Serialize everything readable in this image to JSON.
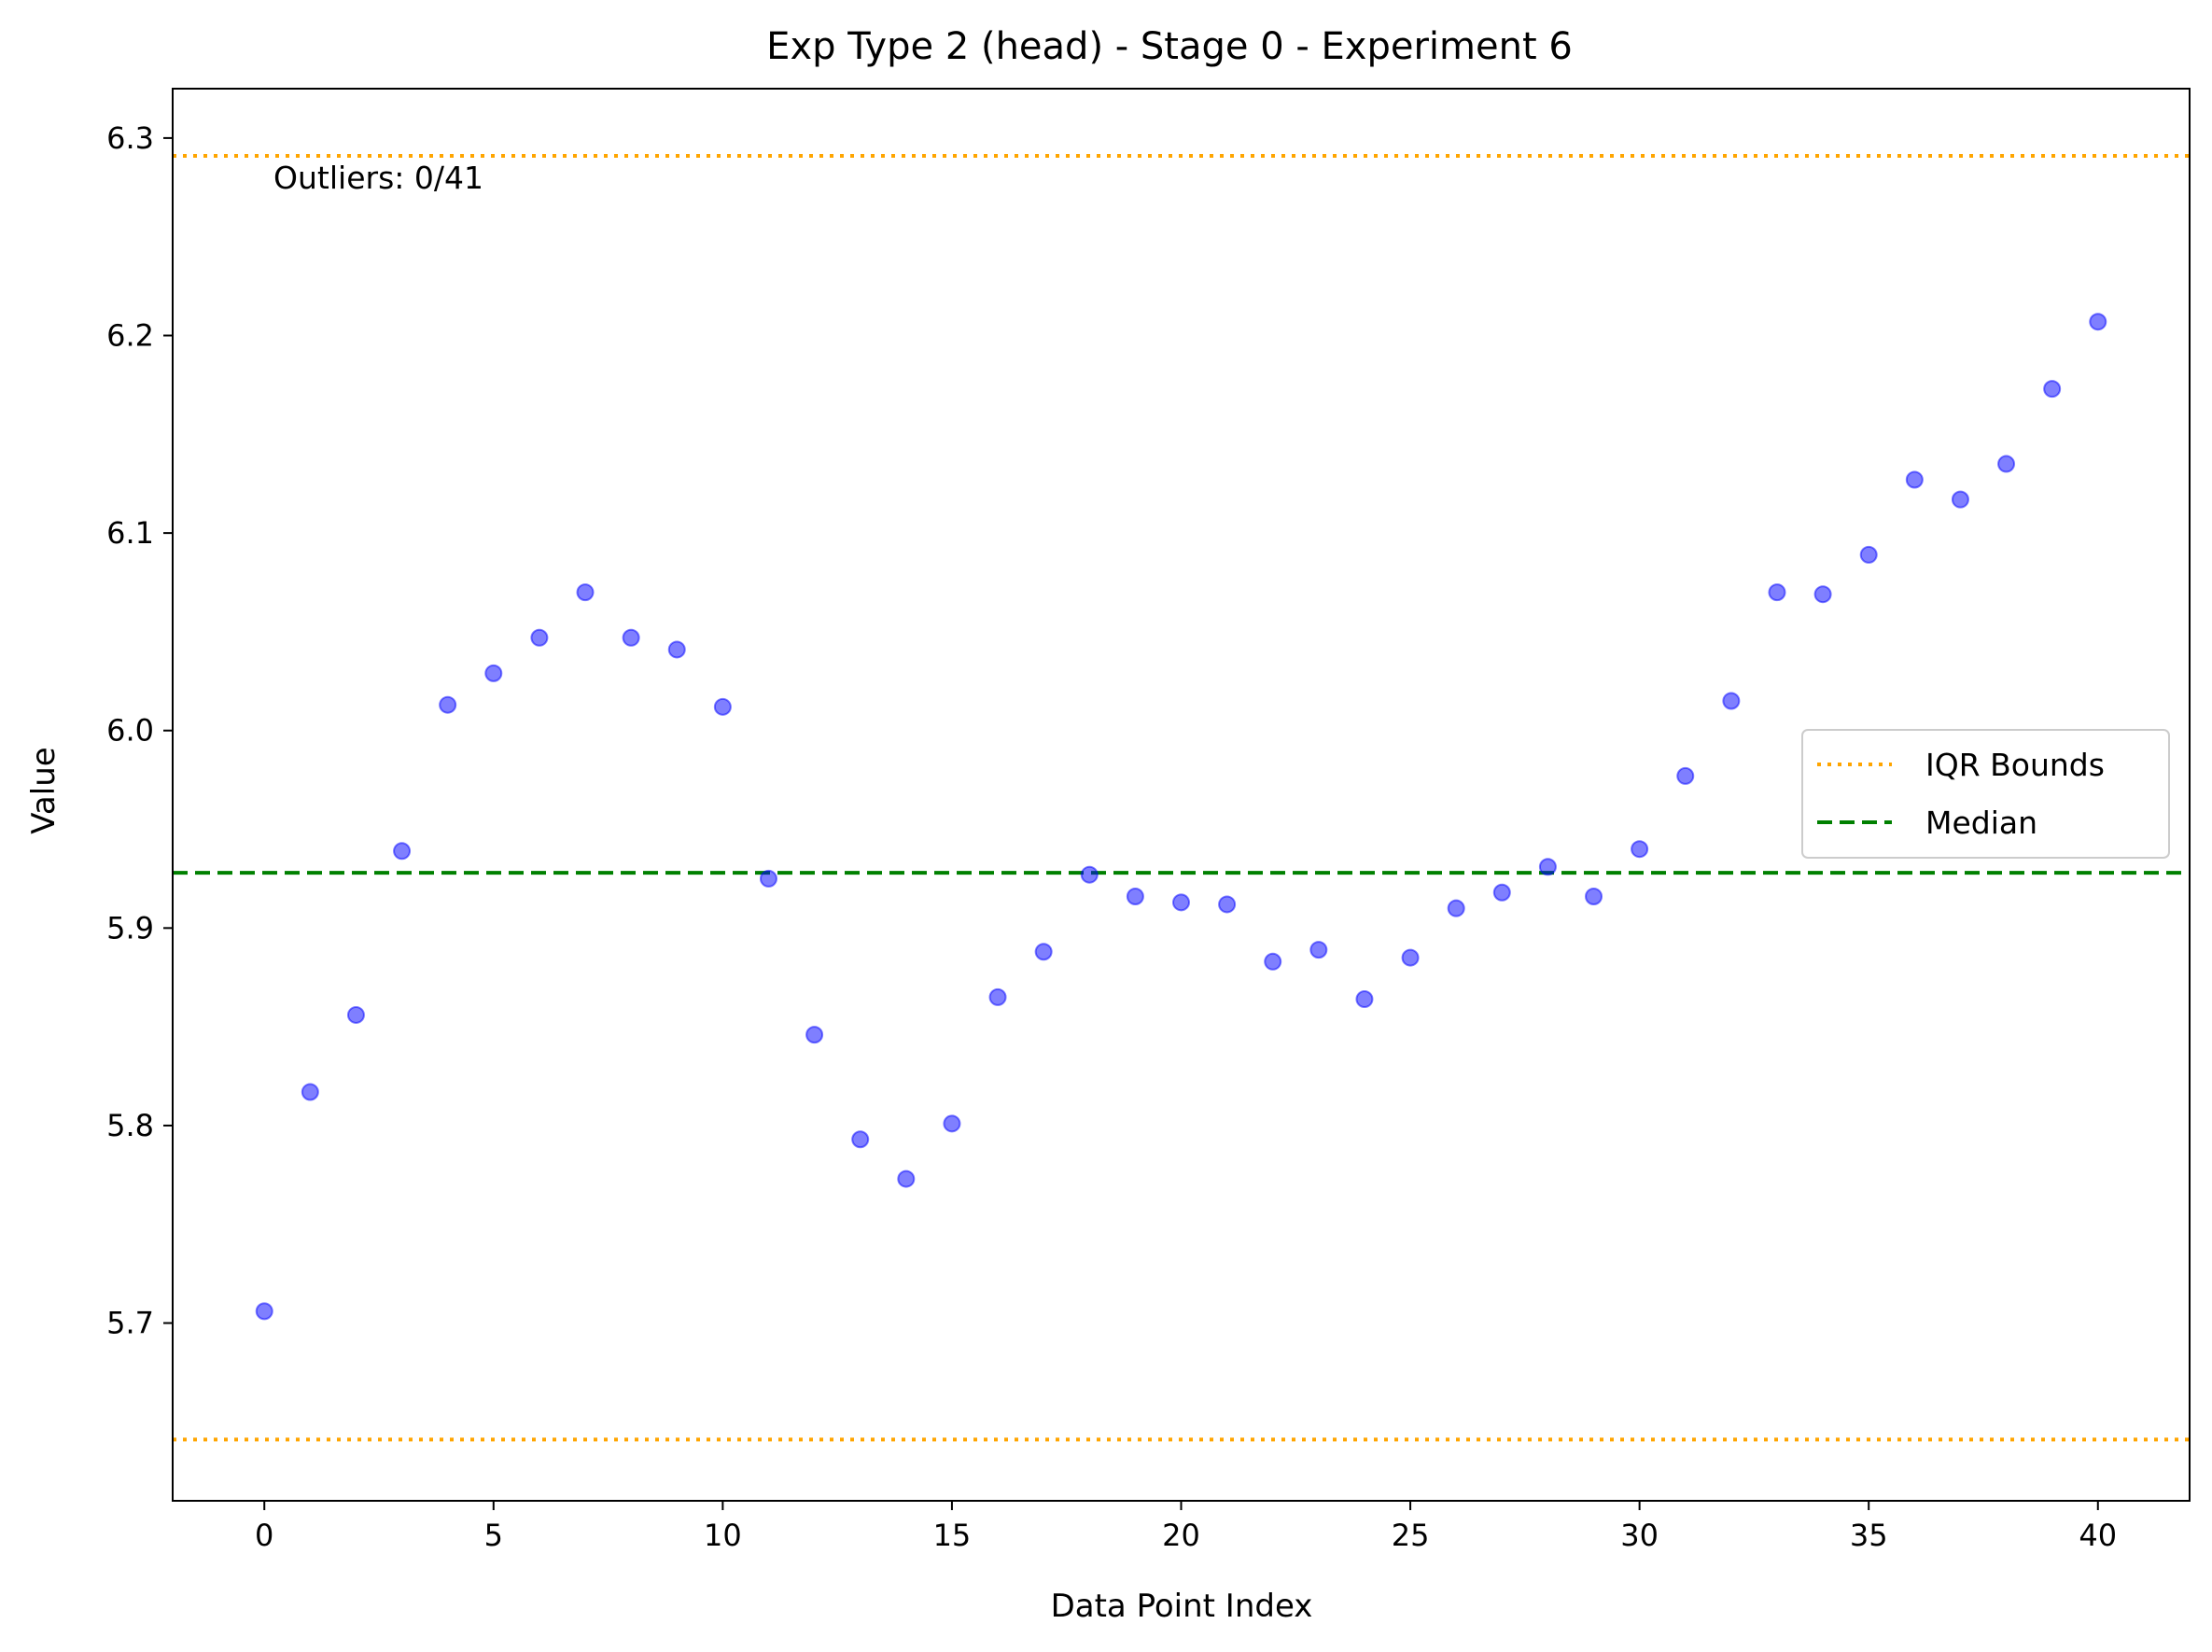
{
  "chart_data": {
    "type": "scatter",
    "title": "Exp Type 2 (head) - Stage 0 - Experiment 6",
    "xlabel": "Data Point Index",
    "ylabel": "Value",
    "xlim": [
      -2,
      42
    ],
    "ylim": [
      5.61,
      6.325
    ],
    "xticks": [
      0,
      5,
      10,
      15,
      20,
      25,
      30,
      35,
      40
    ],
    "yticks": [
      5.7,
      5.8,
      5.9,
      6.0,
      6.1,
      6.2,
      6.3
    ],
    "grid": false,
    "legend_position": "center-right",
    "series": [
      {
        "x": [
          0,
          1,
          2,
          3,
          4,
          5,
          6,
          7,
          8,
          9,
          10,
          11,
          12,
          13,
          14,
          15,
          16,
          17,
          18,
          19,
          20,
          21,
          22,
          23,
          24,
          25,
          26,
          27,
          28,
          29,
          30,
          31,
          32,
          33,
          34,
          35,
          36,
          37,
          38,
          39,
          40
        ],
        "y": [
          5.706,
          5.817,
          5.856,
          5.939,
          6.013,
          6.029,
          6.047,
          6.07,
          6.047,
          6.041,
          6.012,
          5.925,
          5.846,
          5.793,
          5.773,
          5.801,
          5.865,
          5.888,
          5.927,
          5.916,
          5.913,
          5.912,
          5.883,
          5.889,
          5.864,
          5.885,
          5.91,
          5.918,
          5.931,
          5.916,
          5.94,
          5.977,
          6.015,
          6.07,
          6.069,
          6.089,
          6.127,
          6.117,
          6.135,
          6.173,
          6.207
        ],
        "color": "#0000ff"
      }
    ],
    "reference_lines": [
      {
        "name": "IQR Bounds",
        "orientation": "horizontal",
        "values": [
          6.291,
          5.641
        ],
        "color": "#ffa500",
        "style": "dotted"
      },
      {
        "name": "Median",
        "orientation": "horizontal",
        "values": [
          5.928
        ],
        "color": "#008000",
        "style": "dashed"
      }
    ],
    "annotations": [
      {
        "text": "Outliers: 0/41",
        "x": 0.2,
        "y": 6.28
      }
    ]
  }
}
